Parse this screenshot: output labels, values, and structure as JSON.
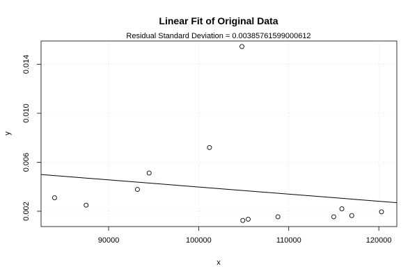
{
  "chart_data": {
    "type": "scatter",
    "title": "Linear Fit of Original Data",
    "subtitle": "Residual Standard Deviation =  0.00385761599000612",
    "xlabel": "x",
    "ylabel": "y",
    "xlim": [
      82500,
      122000
    ],
    "ylim": [
      0.00075,
      0.0159
    ],
    "x_ticks": [
      90000,
      100000,
      110000,
      120000
    ],
    "x_tick_labels": [
      "90000",
      "100000",
      "110000",
      "120000"
    ],
    "y_ticks": [
      0.002,
      0.006,
      0.01,
      0.014
    ],
    "y_tick_labels": [
      "0.002",
      "0.006",
      "0.010",
      "0.014"
    ],
    "grid": true,
    "points": [
      {
        "x": 84000,
        "y": 0.0031
      },
      {
        "x": 87500,
        "y": 0.0025
      },
      {
        "x": 93200,
        "y": 0.00378
      },
      {
        "x": 94500,
        "y": 0.00512
      },
      {
        "x": 101200,
        "y": 0.0072
      },
      {
        "x": 104800,
        "y": 0.01545
      },
      {
        "x": 104900,
        "y": 0.00125
      },
      {
        "x": 105500,
        "y": 0.00135
      },
      {
        "x": 108800,
        "y": 0.00155
      },
      {
        "x": 115000,
        "y": 0.00155
      },
      {
        "x": 115900,
        "y": 0.0022
      },
      {
        "x": 117000,
        "y": 0.00165
      },
      {
        "x": 120300,
        "y": 0.00195
      }
    ],
    "fit_line": {
      "x": [
        82500,
        122000
      ],
      "y": [
        0.005,
        0.0027
      ]
    }
  }
}
